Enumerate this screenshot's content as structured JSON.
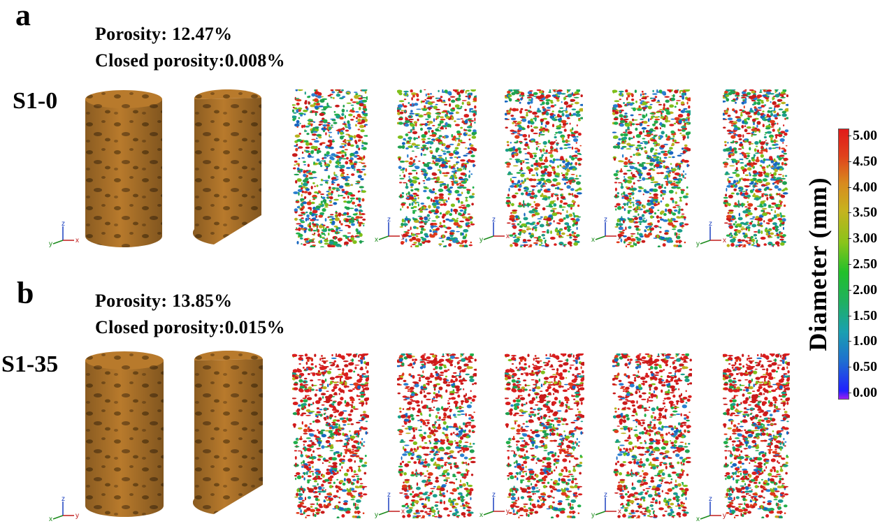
{
  "panels": [
    {
      "letter": "a",
      "sample": "S1-0",
      "porosity_text": "Porosity: 12.47%",
      "closed_porosity_text": "Closed porosity:0.008%"
    },
    {
      "letter": "b",
      "sample": "S1-35",
      "porosity_text": "Porosity: 13.85%",
      "closed_porosity_text": "Closed porosity:0.015%"
    }
  ],
  "axis_labels": {
    "x": "x",
    "y": "y",
    "z": "z"
  },
  "colorbar": {
    "title": "Diameter (mm)",
    "ticks": [
      "5.00",
      "4.50",
      "4.00",
      "3.50",
      "3.00",
      "2.50",
      "2.00",
      "1.50",
      "1.00",
      "0.50",
      "0.00"
    ],
    "range": [
      0.0,
      5.0
    ],
    "colors": [
      "#a020f0",
      "#2020ff",
      "#1f6fd0",
      "#1aa0b0",
      "#1fb060",
      "#22c02a",
      "#8ac41a",
      "#c7b21e",
      "#d88a1f",
      "#e0421c",
      "#e01a1a"
    ]
  },
  "rock_color": "#b87a2c"
}
